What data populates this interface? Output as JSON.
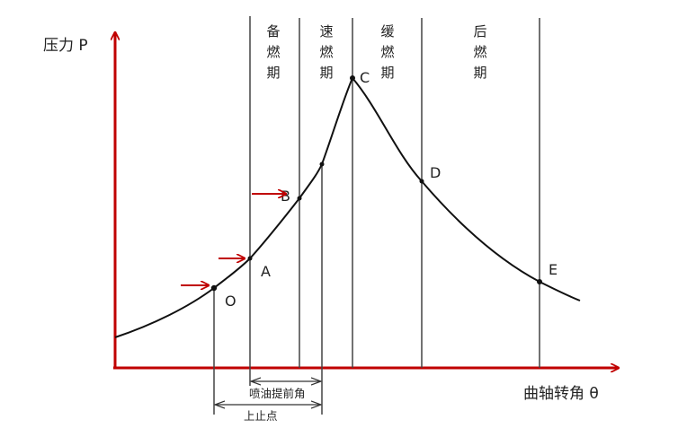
{
  "axes": {
    "y_label": "压力 P",
    "x_label": "曲轴转角 θ",
    "axis_color": "#c00000"
  },
  "phases": [
    {
      "chars": [
        "备",
        "燃",
        "期"
      ]
    },
    {
      "chars": [
        "速",
        "燃",
        "期"
      ]
    },
    {
      "chars": [
        "缓",
        "燃",
        "期"
      ]
    },
    {
      "chars": [
        "后",
        "燃",
        "期"
      ]
    }
  ],
  "points": {
    "O": "O",
    "A": "A",
    "B": "B",
    "C": "C",
    "D": "D",
    "E": "E"
  },
  "annotations": {
    "injection_advance": "喷油提前角",
    "tdc": "上止点"
  },
  "arrow_color": "#c00000"
}
